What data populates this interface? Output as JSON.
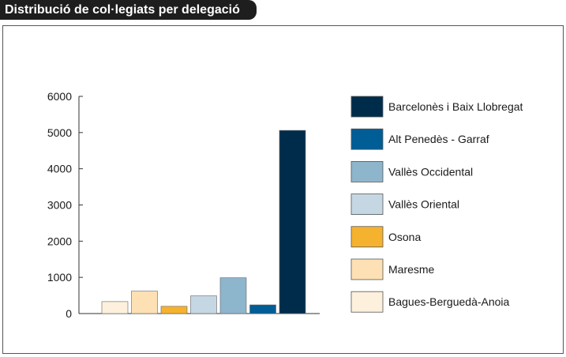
{
  "title": "Distribució de col·legiats per delegació",
  "chart_data": {
    "type": "bar",
    "title": "Distribució de col·legiats per delegació",
    "xlabel": "",
    "ylabel": "",
    "ylim": [
      0,
      6000
    ],
    "yticks": [
      "0",
      "1000",
      "2000",
      "3000",
      "4000",
      "5000",
      "6000"
    ],
    "grid": false,
    "legend_position": "right",
    "series": [
      {
        "name": "Bagues-Berguedà-Anoia",
        "value": 330,
        "color": "#fdf0dc"
      },
      {
        "name": "Maresme",
        "value": 620,
        "color": "#fde0b4"
      },
      {
        "name": "Osona",
        "value": 200,
        "color": "#f5b22f"
      },
      {
        "name": "Vallès Oriental",
        "value": 490,
        "color": "#c5d7e2"
      },
      {
        "name": "Vallès Occidental",
        "value": 990,
        "color": "#8db5cc"
      },
      {
        "name": "Alt Penedès - Garraf",
        "value": 240,
        "color": "#005d96"
      },
      {
        "name": "Barcelonès i Baix Llobregat",
        "value": 5060,
        "color": "#002c4c"
      }
    ],
    "legend_order": [
      "Barcelonès i Baix Llobregat",
      "Alt Penedès - Garraf",
      "Vallès Occidental",
      "Vallès Oriental",
      "Osona",
      "Maresme",
      "Bagues-Berguedà-Anoia"
    ]
  }
}
